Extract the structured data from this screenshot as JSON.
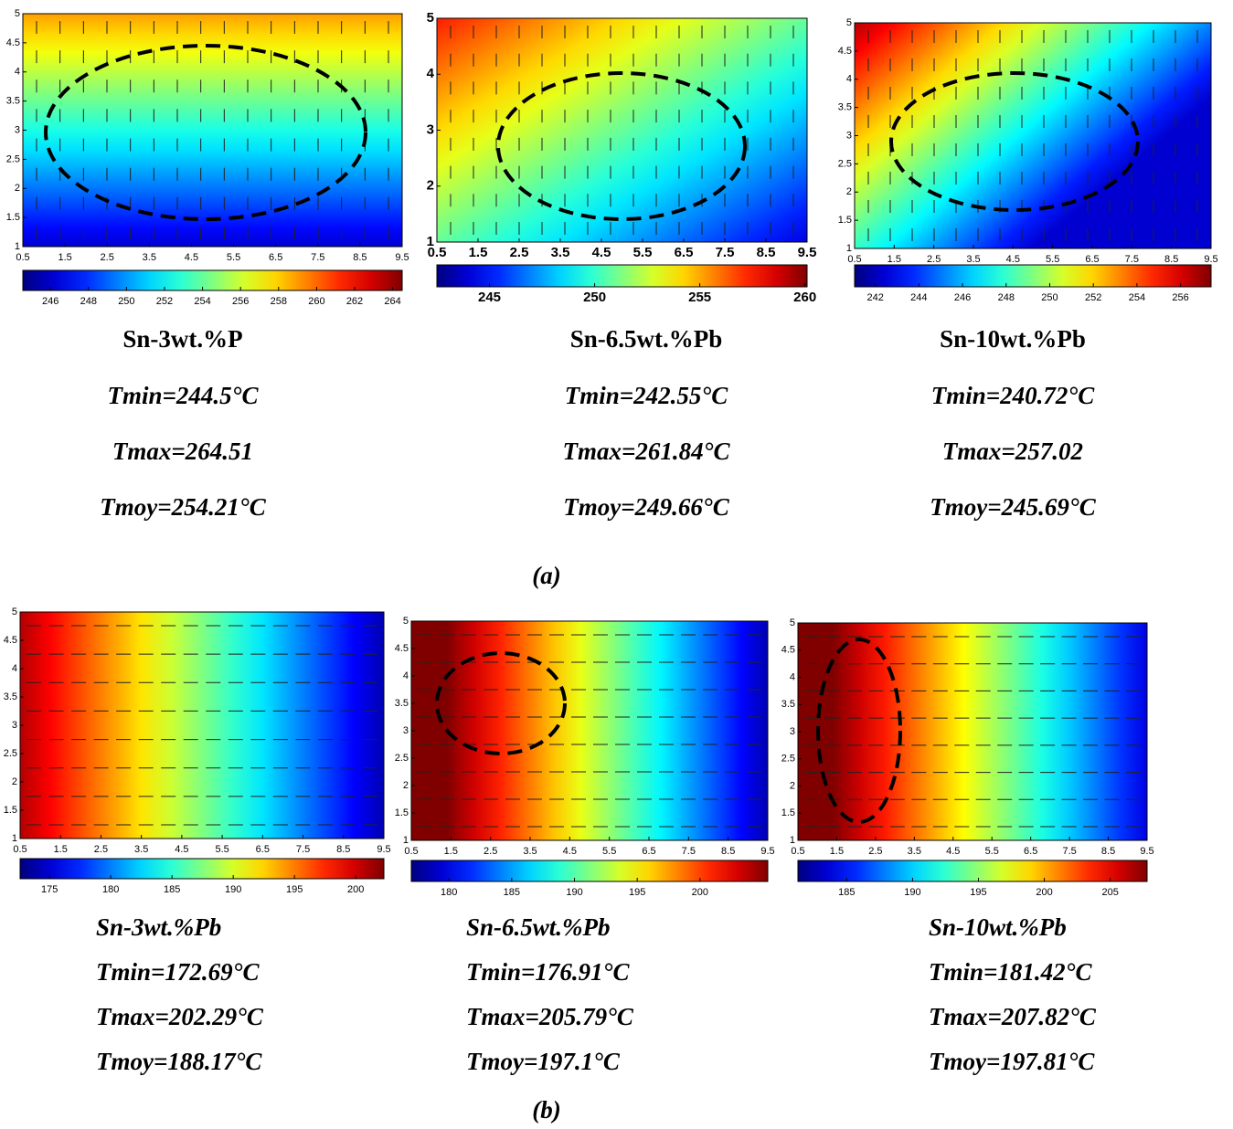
{
  "figure": {
    "panels": [
      {
        "title": "Sn-3wt.%P",
        "tmin": "Tmin=244.5°C",
        "tmax": "Tmax=264.51",
        "tmoy": "Tmoy=254.21°C",
        "xlim": [
          0.5,
          9.5
        ],
        "xticks": [
          0.5,
          1.5,
          2.5,
          3.5,
          4.5,
          5.5,
          6.5,
          7.5,
          8.5,
          9.5
        ],
        "ylim": [
          1,
          5
        ],
        "yticks": [
          1,
          1.5,
          2,
          2.5,
          3,
          3.5,
          4,
          4.5,
          5
        ],
        "clim": [
          244.55,
          264.5
        ],
        "cticks": [
          246,
          248,
          250,
          252,
          254,
          256,
          258,
          260,
          262,
          264
        ]
      },
      {
        "title": "Sn-6.5wt.%Pb",
        "tmin": "Tmin=242.55°C",
        "tmax": "Tmax=261.84°C",
        "tmoy": "Tmoy=249.66°C",
        "xlim": [
          0.5,
          9.5
        ],
        "xticks": [
          0.5,
          1.5,
          2.5,
          3.5,
          4.5,
          5.5,
          6.5,
          7.5,
          8.5,
          9.5
        ],
        "ylim": [
          1,
          5
        ],
        "yticks": [
          1,
          2,
          3,
          4,
          5
        ],
        "clim": [
          242.5,
          260.1
        ],
        "cticks": [
          245,
          250,
          255,
          260
        ]
      },
      {
        "title": "Sn-10wt.%Pb",
        "tmin": "Tmin=240.72°C",
        "tmax": "Tmax=257.02",
        "tmoy": "Tmoy=245.69°C",
        "xlim": [
          0.5,
          9.5
        ],
        "xticks": [
          0.5,
          1.5,
          2.5,
          3.5,
          4.5,
          5.5,
          6.5,
          7.5,
          8.5,
          9.5
        ],
        "ylim": [
          1,
          5
        ],
        "yticks": [
          1,
          1.5,
          2,
          2.5,
          3,
          3.5,
          4,
          4.5,
          5
        ],
        "clim": [
          241.05,
          257.4
        ],
        "cticks": [
          242,
          244,
          246,
          248,
          250,
          252,
          254,
          256
        ]
      },
      {
        "title": "Sn-3wt.%Pb",
        "tmin": "Tmin=172.69°C",
        "tmax": "Tmax=202.29°C",
        "tmoy": "Tmoy=188.17°C",
        "xlim": [
          0.5,
          9.5
        ],
        "xticks": [
          0.5,
          1.5,
          2.5,
          3.5,
          4.5,
          5.5,
          6.5,
          7.5,
          8.5,
          9.5
        ],
        "ylim": [
          1,
          5
        ],
        "yticks": [
          1,
          1.5,
          2,
          2.5,
          3,
          3.5,
          4,
          4.5,
          5
        ],
        "clim": [
          172.6,
          202.3
        ],
        "cticks": [
          175,
          180,
          185,
          190,
          195,
          200
        ]
      },
      {
        "title": "Sn-6.5wt.%Pb",
        "tmin": "Tmin=176.91°C",
        "tmax": "Tmax=205.79°C",
        "tmoy": "Tmoy=197.1°C",
        "xlim": [
          0.5,
          9.5
        ],
        "xticks": [
          0.5,
          1.5,
          2.5,
          3.5,
          4.5,
          5.5,
          6.5,
          7.5,
          8.5,
          9.5
        ],
        "ylim": [
          1,
          5
        ],
        "yticks": [
          1,
          1.5,
          2,
          2.5,
          3,
          3.5,
          4,
          4.5,
          5
        ],
        "clim": [
          177.0,
          205.4
        ],
        "cticks": [
          180,
          185,
          190,
          195,
          200
        ]
      },
      {
        "title": "Sn-10wt.%Pb",
        "tmin": "Tmin=181.42°C",
        "tmax": "Tmax=207.82°C",
        "tmoy": "Tmoy=197.81°C",
        "xlim": [
          0.5,
          9.5
        ],
        "xticks": [
          0.5,
          1.5,
          2.5,
          3.5,
          4.5,
          5.5,
          6.5,
          7.5,
          8.5,
          9.5
        ],
        "ylim": [
          1,
          5
        ],
        "yticks": [
          1,
          1.5,
          2,
          2.5,
          3,
          3.5,
          4,
          4.5,
          5
        ],
        "clim": [
          181.3,
          207.8
        ],
        "cticks": [
          185,
          190,
          195,
          200,
          205
        ]
      }
    ],
    "labels": [
      "(a)",
      "(b)"
    ]
  }
}
